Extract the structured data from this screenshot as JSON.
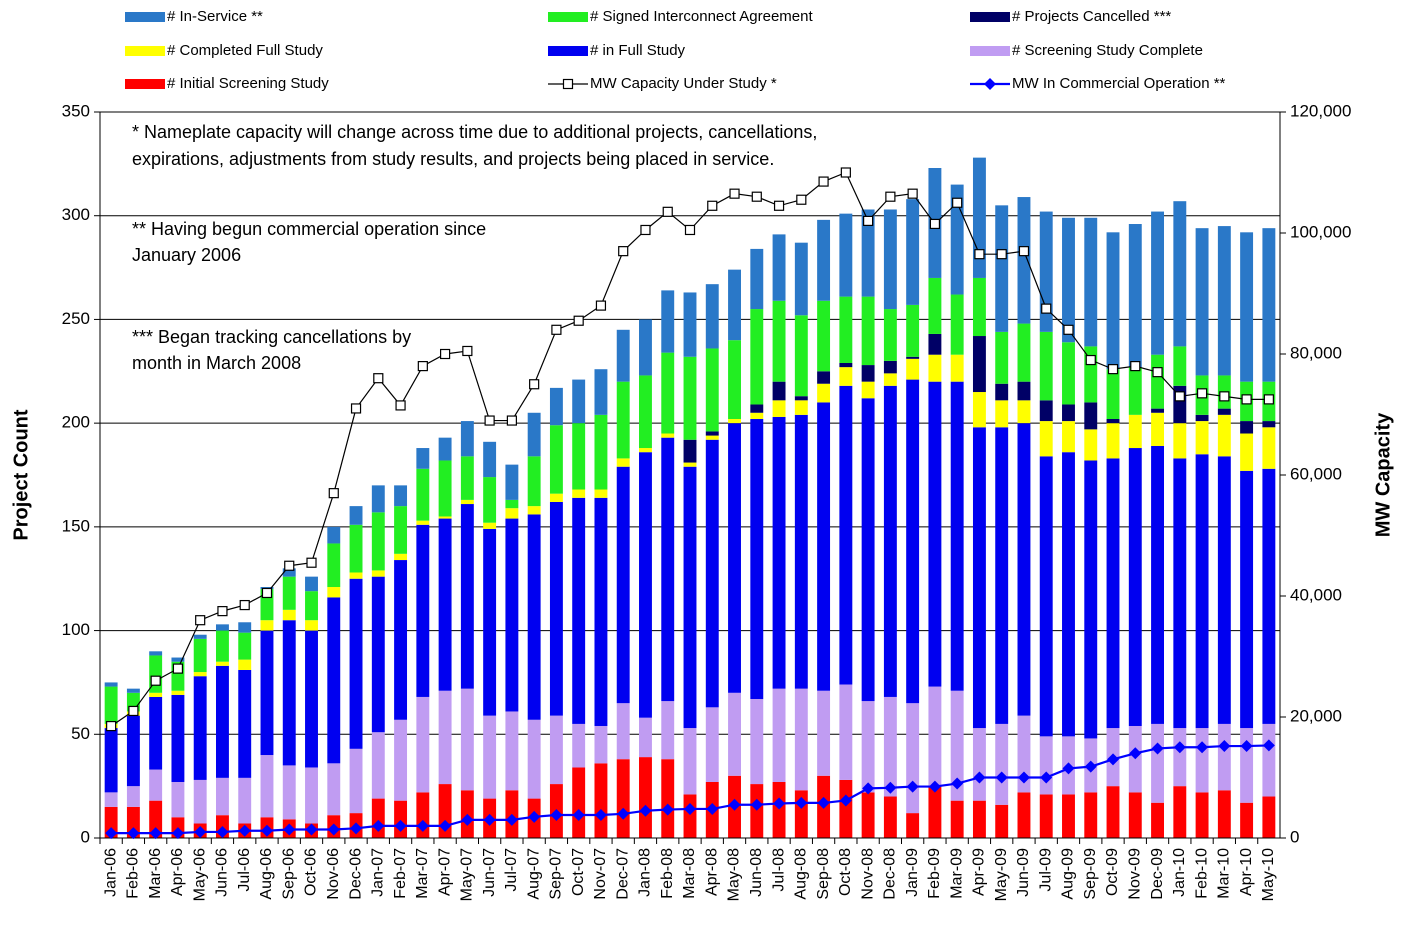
{
  "chart_data": {
    "type": "bar",
    "stacked": true,
    "ylabel": "Project Count",
    "y2label": "MW Capacity",
    "ylim": [
      0,
      350
    ],
    "yticks": [
      0,
      50,
      100,
      150,
      200,
      250,
      300,
      350
    ],
    "y2lim": [
      0,
      120000
    ],
    "y2ticks": [
      0,
      {
        "value": 20000,
        "label": "20,000"
      },
      {
        "value": 40000,
        "label": "40,000"
      },
      {
        "value": 60000,
        "label": "60,000"
      },
      {
        "value": 80000,
        "label": "80,000"
      },
      {
        "value": 100000,
        "label": "100,000"
      },
      {
        "value": 120000,
        "label": "120,000"
      }
    ],
    "grid": true,
    "legend": "top",
    "annotations": [
      [
        "* Nameplate capacity will change across time due to additional projects, cancellations,",
        "expirations, adjustments from study results, and projects being placed in service."
      ],
      [
        "** Having begun commercial operation since",
        "January 2006"
      ],
      [
        "*** Began tracking cancellations by",
        "month in March 2008"
      ]
    ],
    "categories": [
      "Jan-06",
      "Feb-06",
      "Mar-06",
      "Apr-06",
      "May-06",
      "Jun-06",
      "Jul-06",
      "Aug-06",
      "Sep-06",
      "Oct-06",
      "Nov-06",
      "Dec-06",
      "Jan-07",
      "Feb-07",
      "Mar-07",
      "Apr-07",
      "May-07",
      "Jun-07",
      "Jul-07",
      "Aug-07",
      "Sep-07",
      "Oct-07",
      "Nov-07",
      "Dec-07",
      "Jan-08",
      "Feb-08",
      "Mar-08",
      "Apr-08",
      "May-08",
      "Jun-08",
      "Jul-08",
      "Aug-08",
      "Sep-08",
      "Oct-08",
      "Nov-08",
      "Dec-08",
      "Jan-09",
      "Feb-09",
      "Mar-09",
      "Apr-09",
      "May-09",
      "Jun-09",
      "Jul-09",
      "Aug-09",
      "Sep-09",
      "Oct-09",
      "Nov-09",
      "Dec-09",
      "Jan-10",
      "Feb-10",
      "Mar-10",
      "Apr-10",
      "May-10"
    ],
    "series": [
      {
        "name": "# Initial Screening Study",
        "color": "#ff0000",
        "values": [
          15,
          15,
          18,
          10,
          7,
          11,
          7,
          10,
          9,
          7,
          11,
          12,
          19,
          18,
          22,
          26,
          23,
          19,
          23,
          19,
          26,
          34,
          36,
          38,
          39,
          38,
          21,
          27,
          30,
          26,
          27,
          23,
          30,
          28,
          22,
          20,
          12,
          25,
          18,
          18,
          16,
          22,
          21,
          21,
          22,
          25,
          22,
          17,
          25,
          22,
          23,
          17,
          20
        ]
      },
      {
        "name": "# Screening Study Complete",
        "color": "#c09cf2",
        "values": [
          7,
          10,
          15,
          17,
          21,
          18,
          22,
          30,
          26,
          27,
          25,
          31,
          32,
          39,
          46,
          45,
          49,
          40,
          38,
          38,
          33,
          21,
          18,
          27,
          19,
          28,
          32,
          36,
          40,
          41,
          45,
          49,
          41,
          46,
          44,
          48,
          53,
          48,
          53,
          35,
          39,
          37,
          28,
          28,
          26,
          28,
          32,
          38,
          28,
          31,
          32,
          36,
          35
        ]
      },
      {
        "name": "# in Full Study",
        "color": "#0000f0",
        "values": [
          31,
          34,
          35,
          42,
          50,
          54,
          52,
          60,
          70,
          66,
          80,
          82,
          75,
          77,
          83,
          83,
          89,
          90,
          93,
          99,
          103,
          109,
          110,
          114,
          128,
          127,
          126,
          129,
          130,
          135,
          131,
          132,
          139,
          144,
          146,
          150,
          156,
          147,
          149,
          145,
          143,
          141,
          135,
          137,
          134,
          130,
          134,
          134,
          130,
          132,
          129,
          124,
          123
        ]
      },
      {
        "name": "# Completed Full Study",
        "color": "#ffff00",
        "values": [
          2,
          2,
          2,
          2,
          2,
          2,
          5,
          5,
          5,
          5,
          5,
          3,
          3,
          3,
          2,
          1,
          2,
          3,
          5,
          4,
          4,
          4,
          4,
          4,
          2,
          2,
          2,
          2,
          2,
          3,
          8,
          7,
          9,
          9,
          8,
          6,
          10,
          13,
          13,
          17,
          13,
          11,
          17,
          15,
          15,
          17,
          16,
          16,
          17,
          16,
          20,
          18,
          20
        ]
      },
      {
        "name": "# Projects Cancelled ***",
        "color": "#000066",
        "values": [
          0,
          0,
          0,
          0,
          0,
          0,
          0,
          0,
          0,
          0,
          0,
          0,
          0,
          0,
          0,
          0,
          0,
          0,
          0,
          0,
          0,
          0,
          0,
          0,
          0,
          0,
          11,
          2,
          0,
          4,
          9,
          2,
          6,
          2,
          8,
          6,
          1,
          10,
          0,
          27,
          8,
          9,
          10,
          8,
          13,
          2,
          0,
          2,
          18,
          3,
          3,
          6,
          3
        ]
      },
      {
        "name": "# Signed Interconnect Agreement",
        "color": "#22ee22",
        "values": [
          18,
          9,
          18,
          14,
          16,
          15,
          13,
          15,
          16,
          14,
          21,
          23,
          28,
          23,
          25,
          27,
          21,
          22,
          4,
          24,
          33,
          32,
          36,
          37,
          35,
          39,
          40,
          40,
          38,
          46,
          39,
          39,
          34,
          32,
          33,
          25,
          25,
          27,
          29,
          28,
          25,
          28,
          33,
          30,
          27,
          24,
          23,
          26,
          19,
          19,
          16,
          19,
          19
        ]
      },
      {
        "name": "# In-Service  **",
        "color": "#2a78c8",
        "values": [
          2,
          2,
          2,
          2,
          2,
          3,
          5,
          1,
          4,
          7,
          8,
          9,
          13,
          10,
          10,
          11,
          17,
          17,
          17,
          21,
          18,
          21,
          22,
          25,
          27,
          30,
          31,
          31,
          34,
          29,
          32,
          35,
          39,
          40,
          42,
          48,
          51,
          53,
          53,
          58,
          61,
          61,
          58,
          60,
          62,
          66,
          69,
          69,
          70,
          71,
          72,
          72,
          74
        ]
      },
      {
        "name": "MW Capacity Under Study *",
        "color": "#000000",
        "type": "line",
        "marker": "square",
        "axis": "y2",
        "values": [
          18500,
          21000,
          26000,
          28000,
          36000,
          37500,
          38500,
          40500,
          45000,
          45500,
          57000,
          71000,
          76000,
          71500,
          78000,
          80000,
          80500,
          69000,
          69000,
          75000,
          84000,
          85500,
          88000,
          97000,
          100500,
          103500,
          100500,
          104500,
          106500,
          106000,
          104500,
          105500,
          108500,
          110000,
          102000,
          106000,
          106500,
          101500,
          105000,
          96500,
          96500,
          97000,
          87500,
          84000,
          79000,
          77500,
          78000,
          77000,
          73000,
          73500,
          73000,
          72500,
          72500
        ]
      },
      {
        "name": "MW In Commercial Operation **",
        "color": "#0000ff",
        "type": "line",
        "marker": "diamond",
        "axis": "y2",
        "values": [
          800,
          800,
          800,
          800,
          1000,
          1000,
          1200,
          1200,
          1400,
          1400,
          1400,
          1600,
          2000,
          2000,
          2000,
          2000,
          3000,
          3000,
          3000,
          3500,
          3800,
          3800,
          3800,
          4000,
          4500,
          4700,
          4800,
          4800,
          5500,
          5500,
          5700,
          5800,
          5800,
          6200,
          8200,
          8300,
          8500,
          8500,
          9000,
          10000,
          10000,
          10000,
          10000,
          11500,
          11800,
          13000,
          14000,
          14800,
          15000,
          15000,
          15200,
          15200,
          15300
        ]
      }
    ]
  }
}
